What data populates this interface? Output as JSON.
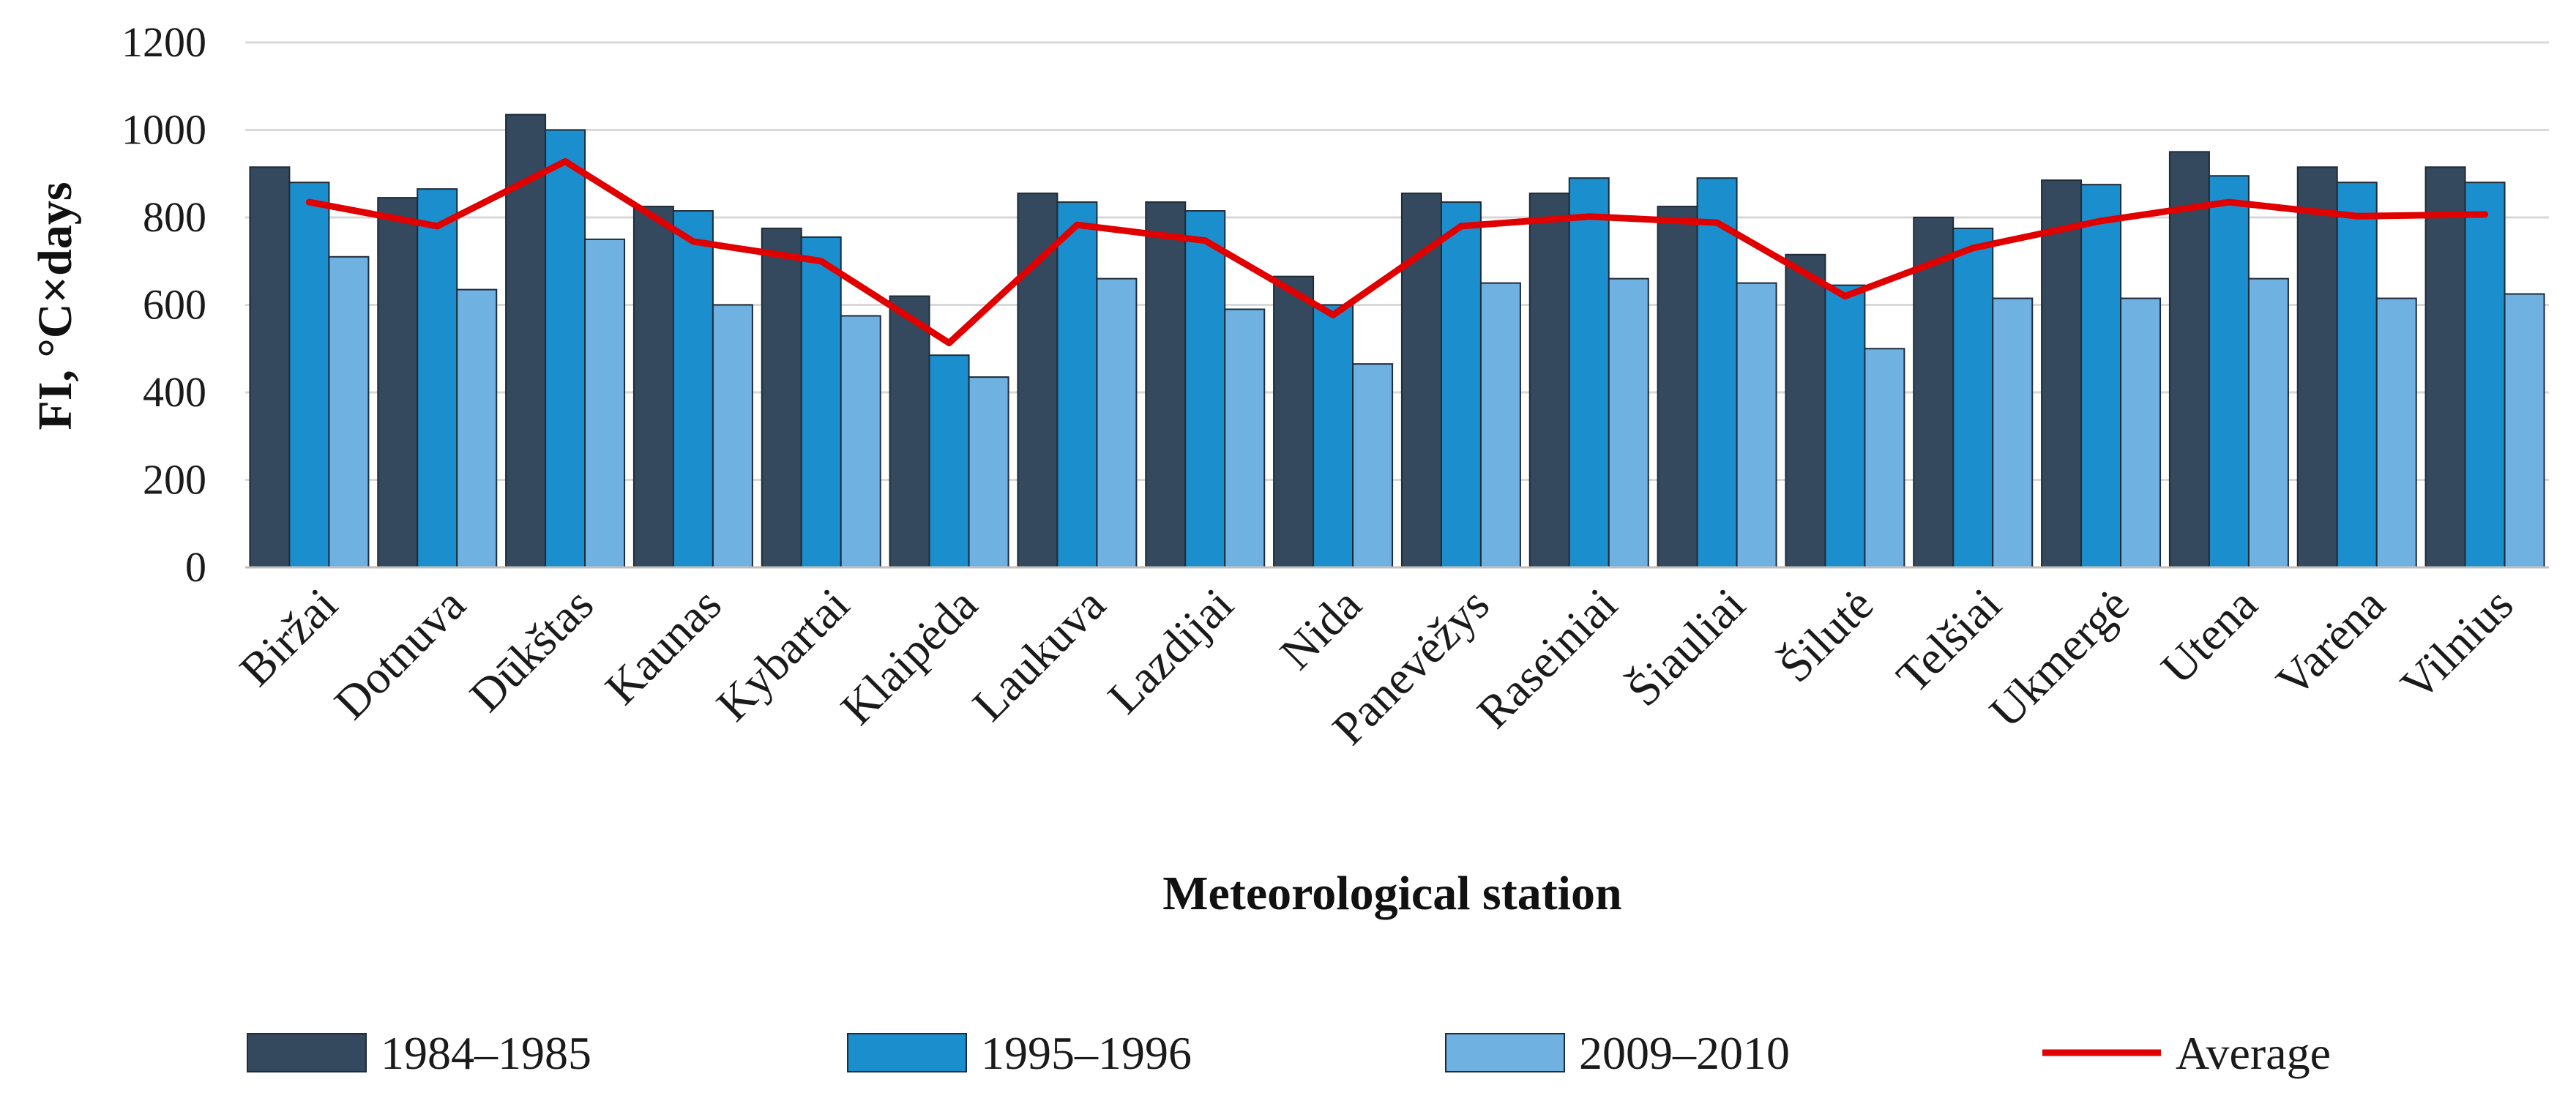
{
  "chart_data": {
    "type": "bar",
    "xlabel": "Meteorological station",
    "ylabel": "FI, °C×days",
    "ylim": [
      0,
      1200
    ],
    "yticks": [
      0,
      200,
      400,
      600,
      800,
      1000,
      1200
    ],
    "grid": true,
    "legend_position": "bottom",
    "categories": [
      "Biržai",
      "Dotnuva",
      "Dūkštas",
      "Kaunas",
      "Kybartai",
      "Klaipėda",
      "Laukuva",
      "Lazdijai",
      "Nida",
      "Panevėžys",
      "Raseiniai",
      "Šiauliai",
      "Šilutė",
      "Telšiai",
      "Ukmergė",
      "Utena",
      "Varėna",
      "Vilnius"
    ],
    "series": [
      {
        "name": "1984–1985",
        "type": "bar",
        "color": "#34495e",
        "values": [
          915,
          845,
          1035,
          825,
          775,
          620,
          855,
          835,
          665,
          855,
          855,
          825,
          715,
          800,
          885,
          950,
          915,
          915
        ]
      },
      {
        "name": "1995–1996",
        "type": "bar",
        "color": "#1b8fce",
        "values": [
          880,
          865,
          1000,
          815,
          755,
          485,
          835,
          815,
          600,
          835,
          890,
          890,
          645,
          775,
          875,
          895,
          880,
          880
        ]
      },
      {
        "name": "2009–2010",
        "type": "bar",
        "color": "#6fb2e1",
        "values": [
          710,
          635,
          750,
          600,
          575,
          435,
          660,
          590,
          465,
          650,
          660,
          650,
          500,
          615,
          615,
          660,
          615,
          625
        ]
      },
      {
        "name": "Average",
        "type": "line",
        "color": "#e00000",
        "values": [
          835,
          780,
          928,
          745,
          700,
          513,
          783,
          747,
          577,
          780,
          802,
          788,
          620,
          730,
          792,
          835,
          803,
          807
        ]
      }
    ]
  }
}
